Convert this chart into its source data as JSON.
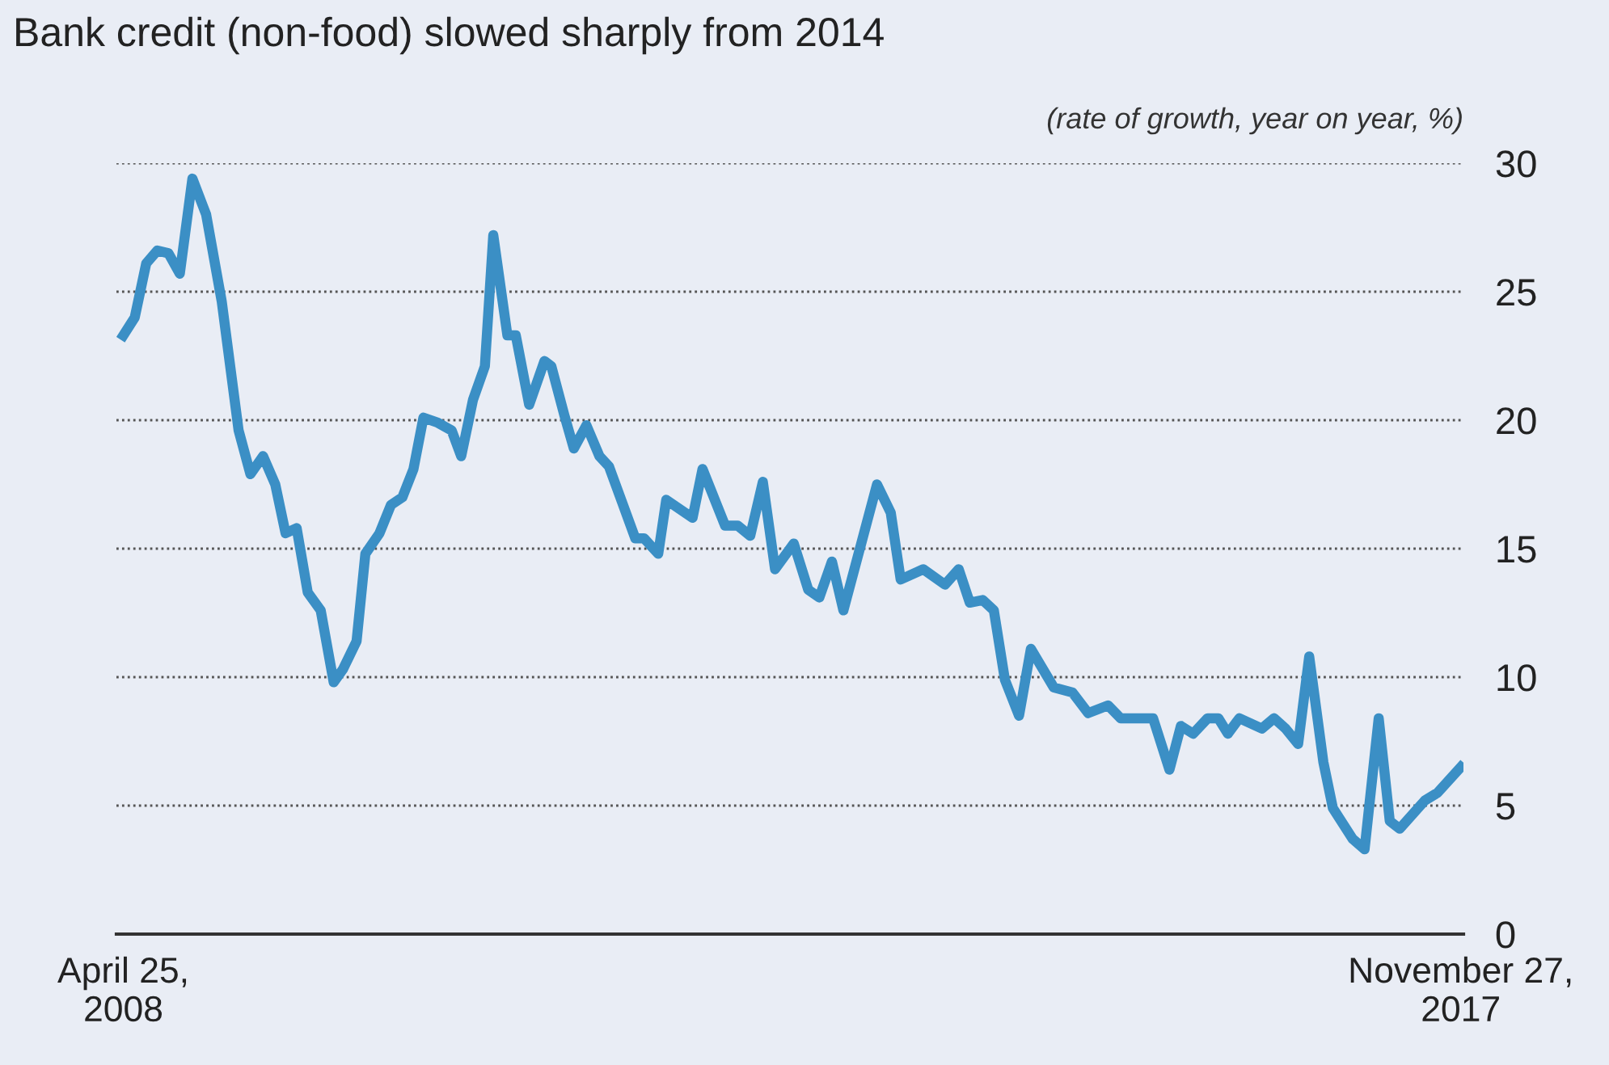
{
  "chart_data": {
    "type": "line",
    "title": "Bank credit (non-food) slowed sharply from 2014",
    "ylabel": "(rate of growth, year on year, %)",
    "x": [
      "2008-04-25",
      "2008-05-25",
      "2008-06-24",
      "2008-07-23",
      "2008-08-21",
      "2008-09-20",
      "2008-10-23",
      "2008-11-28",
      "2009-01-08",
      "2009-02-21",
      "2009-03-24",
      "2009-04-26",
      "2009-05-28",
      "2009-06-24",
      "2009-07-23",
      "2009-08-21",
      "2009-09-24",
      "2009-10-28",
      "2009-11-21",
      "2009-12-27",
      "2010-01-19",
      "2010-02-25",
      "2010-03-27",
      "2010-04-26",
      "2010-05-25",
      "2010-06-20",
      "2010-07-28",
      "2010-09-02",
      "2010-09-27",
      "2010-10-28",
      "2010-11-28",
      "2010-12-20",
      "2011-01-26",
      "2011-02-17",
      "2011-03-24",
      "2011-05-03",
      "2011-05-21",
      "2011-06-24",
      "2011-07-19",
      "2011-08-21",
      "2011-09-24",
      "2011-10-19",
      "2011-12-27",
      "2012-01-19",
      "2012-02-25",
      "2012-03-17",
      "2012-05-25",
      "2012-06-20",
      "2012-08-18",
      "2012-09-20",
      "2012-10-23",
      "2012-11-25",
      "2012-12-27",
      "2013-02-14",
      "2013-03-24",
      "2013-04-22",
      "2013-05-25",
      "2013-06-24",
      "2013-09-20",
      "2013-10-26",
      "2013-11-21",
      "2014-01-19",
      "2014-03-17",
      "2014-04-22",
      "2014-05-21",
      "2014-06-24",
      "2014-07-23",
      "2014-08-21",
      "2014-09-27",
      "2014-10-28",
      "2014-12-27",
      "2015-02-14",
      "2015-03-27",
      "2015-05-18",
      "2015-06-20",
      "2015-09-13",
      "2015-10-26",
      "2015-11-25",
      "2015-12-27",
      "2016-02-03",
      "2016-03-02",
      "2016-03-27",
      "2016-04-26",
      "2016-06-24",
      "2016-07-26",
      "2016-08-25",
      "2016-09-27",
      "2016-10-26",
      "2016-12-02",
      "2016-12-27",
      "2017-02-17",
      "2017-03-20",
      "2017-04-26",
      "2017-05-25",
      "2017-06-20",
      "2017-08-25",
      "2017-09-27",
      "2017-11-27"
    ],
    "series": [
      {
        "color": "#3b8fc5",
        "values": [
          23.3,
          24.0,
          26.1,
          26.6,
          26.5,
          25.7,
          29.4,
          28.0,
          24.6,
          19.6,
          17.9,
          18.6,
          17.5,
          15.6,
          15.8,
          13.3,
          12.6,
          9.8,
          10.3,
          11.4,
          14.8,
          15.6,
          16.7,
          17.0,
          18.1,
          20.1,
          19.9,
          19.6,
          18.6,
          20.8,
          22.1,
          27.2,
          23.3,
          23.3,
          20.6,
          22.3,
          22.1,
          20.2,
          18.9,
          19.8,
          18.6,
          18.2,
          15.4,
          15.4,
          14.8,
          16.9,
          16.2,
          18.1,
          15.9,
          15.9,
          15.5,
          17.6,
          14.2,
          15.2,
          13.4,
          13.1,
          14.5,
          12.6,
          17.5,
          16.4,
          13.8,
          14.2,
          13.6,
          14.2,
          12.9,
          13.0,
          12.6,
          9.9,
          8.5,
          11.1,
          9.6,
          9.4,
          8.6,
          8.9,
          8.4,
          8.4,
          6.4,
          8.1,
          7.8,
          8.4,
          8.4,
          7.8,
          8.4,
          8.0,
          8.4,
          8.0,
          7.4,
          10.8,
          6.7,
          4.9,
          3.7,
          3.3,
          8.4,
          4.4,
          4.1,
          5.2,
          5.5,
          6.5
        ]
      }
    ],
    "xlim": [
      "2008-04-07",
      "2017-12-04"
    ],
    "xticks": [
      {
        "value": "2008-04-25",
        "label": "April 25,\n2008"
      },
      {
        "value": "2017-11-27",
        "label": "November 27,\n2017"
      }
    ],
    "ylim": [
      0,
      30
    ],
    "yticks": [
      0,
      5,
      10,
      15,
      20,
      25,
      30
    ],
    "grid": "y",
    "legend": false,
    "line_style": "solid",
    "marker": "none"
  }
}
